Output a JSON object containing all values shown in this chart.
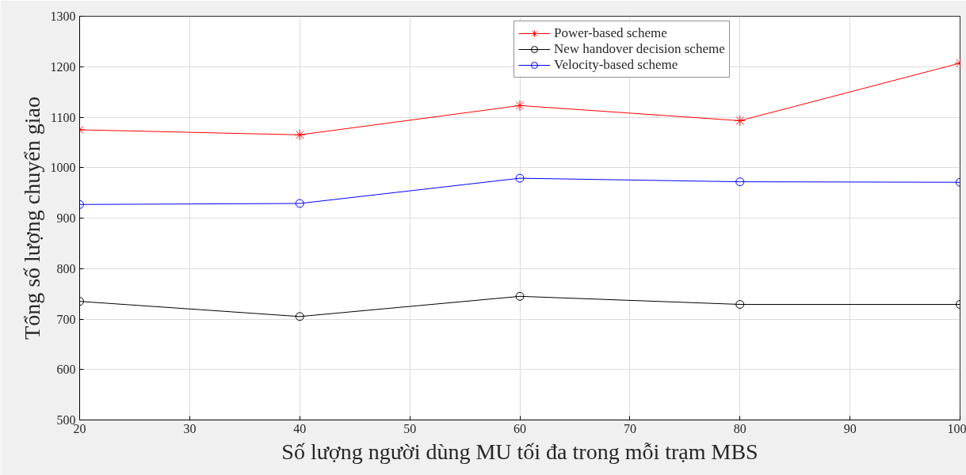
{
  "chart_data": {
    "type": "line",
    "xlabel": "Số lượng người dùng MU tối đa trong mỗi trạm MBS",
    "ylabel": "Tổng số lượng chuyển giao",
    "x": [
      20,
      40,
      60,
      80,
      100
    ],
    "series": [
      {
        "name": "Power-based scheme",
        "color": "#ff0000",
        "marker": "cross",
        "values": [
          1075,
          1065,
          1123,
          1093,
          1207
        ]
      },
      {
        "name": "New handover decision scheme",
        "color": "#000000",
        "marker": "circle",
        "values": [
          735,
          705,
          745,
          729,
          729
        ]
      },
      {
        "name": "Velocity-based scheme",
        "color": "#0000ff",
        "marker": "circle",
        "values": [
          927,
          929,
          979,
          972,
          971
        ]
      }
    ],
    "xlim": [
      20,
      100
    ],
    "xticks": [
      20,
      30,
      40,
      50,
      60,
      70,
      80,
      90,
      100
    ],
    "ylim": [
      500,
      1300
    ],
    "yticks": [
      500,
      600,
      700,
      800,
      900,
      1000,
      1100,
      1200,
      1300
    ],
    "grid": true,
    "legend": "top right",
    "line_style": "solid"
  }
}
